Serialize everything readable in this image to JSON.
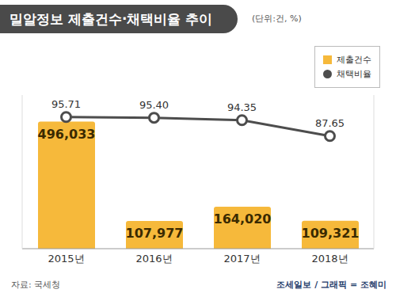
{
  "chart_data": {
    "type": "bar",
    "title": "밀알정보 제출건수·채택비율 추이",
    "subtitle": "(단위:건, %)",
    "source": "자료: 국세청",
    "credit": "조세일보 / 그래픽 = 조혜미",
    "categories": [
      "2015년",
      "2016년",
      "2017년",
      "2018년"
    ],
    "series": [
      {
        "name": "제출건수",
        "type": "bar",
        "color": "#f6b93b",
        "values": [
          496033,
          107977,
          164020,
          109321
        ],
        "value_labels": [
          "496,033",
          "107,977",
          "164,020",
          "109,321"
        ]
      },
      {
        "name": "채택비율",
        "type": "line",
        "color": "#4d4d4d",
        "axis": "y2",
        "marker": "circle",
        "values": [
          95.71,
          95.4,
          94.35,
          87.65
        ],
        "value_labels": [
          "95.71",
          "95.40",
          "94.35",
          "87.65"
        ]
      }
    ],
    "ylim": [
      0,
      600000
    ],
    "y2lim": [
      40,
      105
    ],
    "data_labels": true,
    "legend": "top-right",
    "tick_labels": "x",
    "grid": false
  }
}
